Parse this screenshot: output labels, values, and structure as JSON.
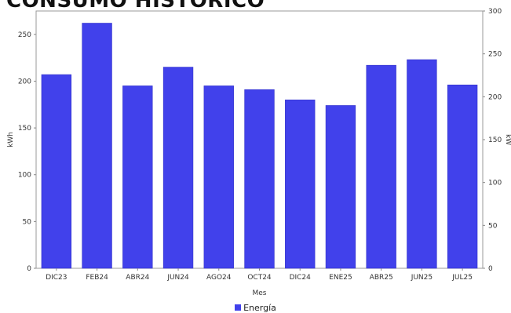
{
  "chart_data": {
    "type": "bar",
    "title": "CONSUMO HISTÓRICO",
    "categories": [
      "DIC23",
      "FEB24",
      "ABR24",
      "JUN24",
      "AGO24",
      "OCT24",
      "DIC24",
      "ENE25",
      "ABR25",
      "JUN25",
      "JUL25"
    ],
    "series": [
      {
        "name": "Energía",
        "values": [
          207,
          262,
          195,
          215,
          195,
          191,
          180,
          174,
          217,
          223,
          196
        ]
      }
    ],
    "xlabel": "Mes",
    "ylabel": "kWh",
    "y2label": "kW",
    "ylim": [
      0,
      275
    ],
    "y2lim": [
      0,
      300
    ],
    "yticks": [
      0,
      50,
      100,
      150,
      200,
      250
    ],
    "y2ticks": [
      0,
      50,
      100,
      150,
      200,
      250,
      300
    ],
    "bar_color": "#4141eb",
    "grid": false,
    "legend_position": "bottom-center"
  }
}
